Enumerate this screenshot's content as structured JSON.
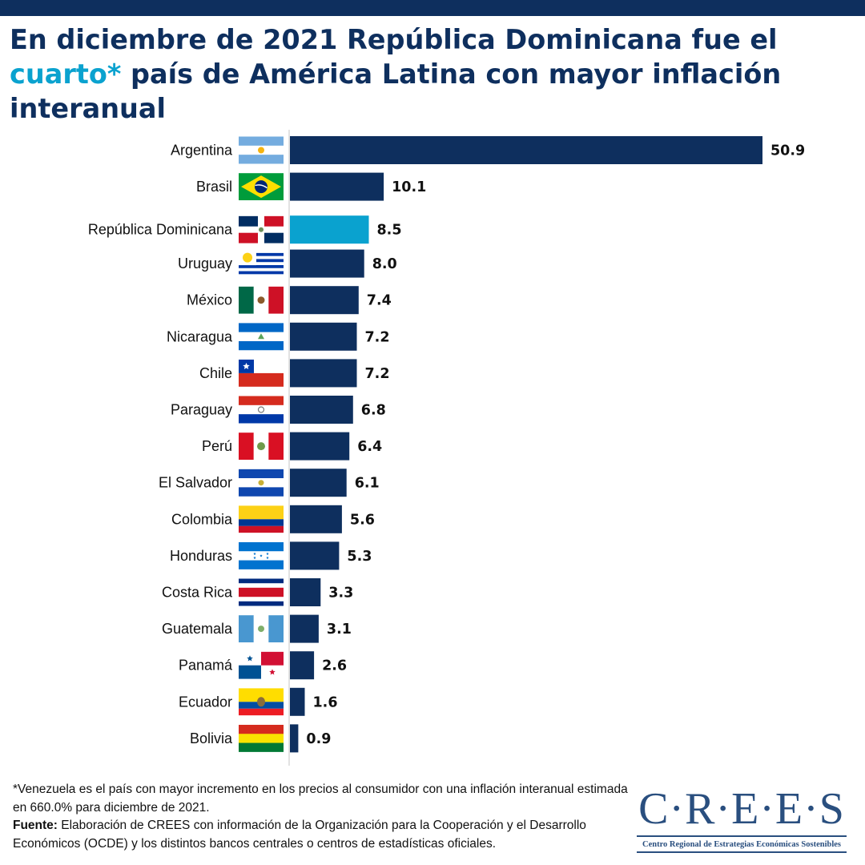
{
  "title": {
    "part1": "En diciembre de 2021 República Dominicana fue el ",
    "highlight": "cuarto*",
    "part2": " país de América Latina con mayor inflación interanual"
  },
  "colors": {
    "bar": "#0e2f5e",
    "highlight_bar": "#0aa2cf",
    "header_bar": "#0e2f5e"
  },
  "chart_data": {
    "type": "bar",
    "orientation": "horizontal",
    "categories": [
      "Argentina",
      "Brasil",
      "República Dominicana",
      "Uruguay",
      "México",
      "Nicaragua",
      "Chile",
      "Paraguay",
      "Perú",
      "El Salvador",
      "Colombia",
      "Honduras",
      "Costa Rica",
      "Guatemala",
      "Panamá",
      "Ecuador",
      "Bolivia"
    ],
    "values": [
      50.9,
      10.1,
      8.5,
      8.0,
      7.4,
      7.2,
      7.2,
      6.8,
      6.4,
      6.1,
      5.6,
      5.3,
      3.3,
      3.1,
      2.6,
      1.6,
      0.9
    ],
    "value_labels": [
      "50.9",
      "10.1",
      "8.5",
      "8.0",
      "7.4",
      "7.2",
      "7.2",
      "6.8",
      "6.4",
      "6.1",
      "5.6",
      "5.3",
      "3.3",
      "3.1",
      "2.6",
      "1.6",
      "0.9"
    ],
    "highlight_category": "República Dominicana",
    "flag_icons": [
      "flag-argentina-icon",
      "flag-brasil-icon",
      "flag-republica-dominicana-icon",
      "flag-uruguay-icon",
      "flag-mexico-icon",
      "flag-nicaragua-icon",
      "flag-chile-icon",
      "flag-paraguay-icon",
      "flag-peru-icon",
      "flag-el-salvador-icon",
      "flag-colombia-icon",
      "flag-honduras-icon",
      "flag-costa-rica-icon",
      "flag-guatemala-icon",
      "flag-panama-icon",
      "flag-ecuador-icon",
      "flag-bolivia-icon"
    ],
    "title": "",
    "xlabel": "",
    "ylabel": "",
    "grid": false,
    "legend": "none"
  },
  "footnote": {
    "note": "*Venezuela es el país con mayor incremento en los precios al consumidor con una inflación interanual estimada en 660.0%  para diciembre de 2021.",
    "source_label": "Fuente:",
    "source_text": " Elaboración de CREES con información de la Organización para la Cooperación y el Desarrollo Económicos (OCDE) y los distintos bancos centrales o centros de estadísticas oficiales."
  },
  "logo": {
    "mark": "C·R·E·E·S",
    "subtitle": "Centro Regional de Estrategias Económicas Sostenibles"
  }
}
